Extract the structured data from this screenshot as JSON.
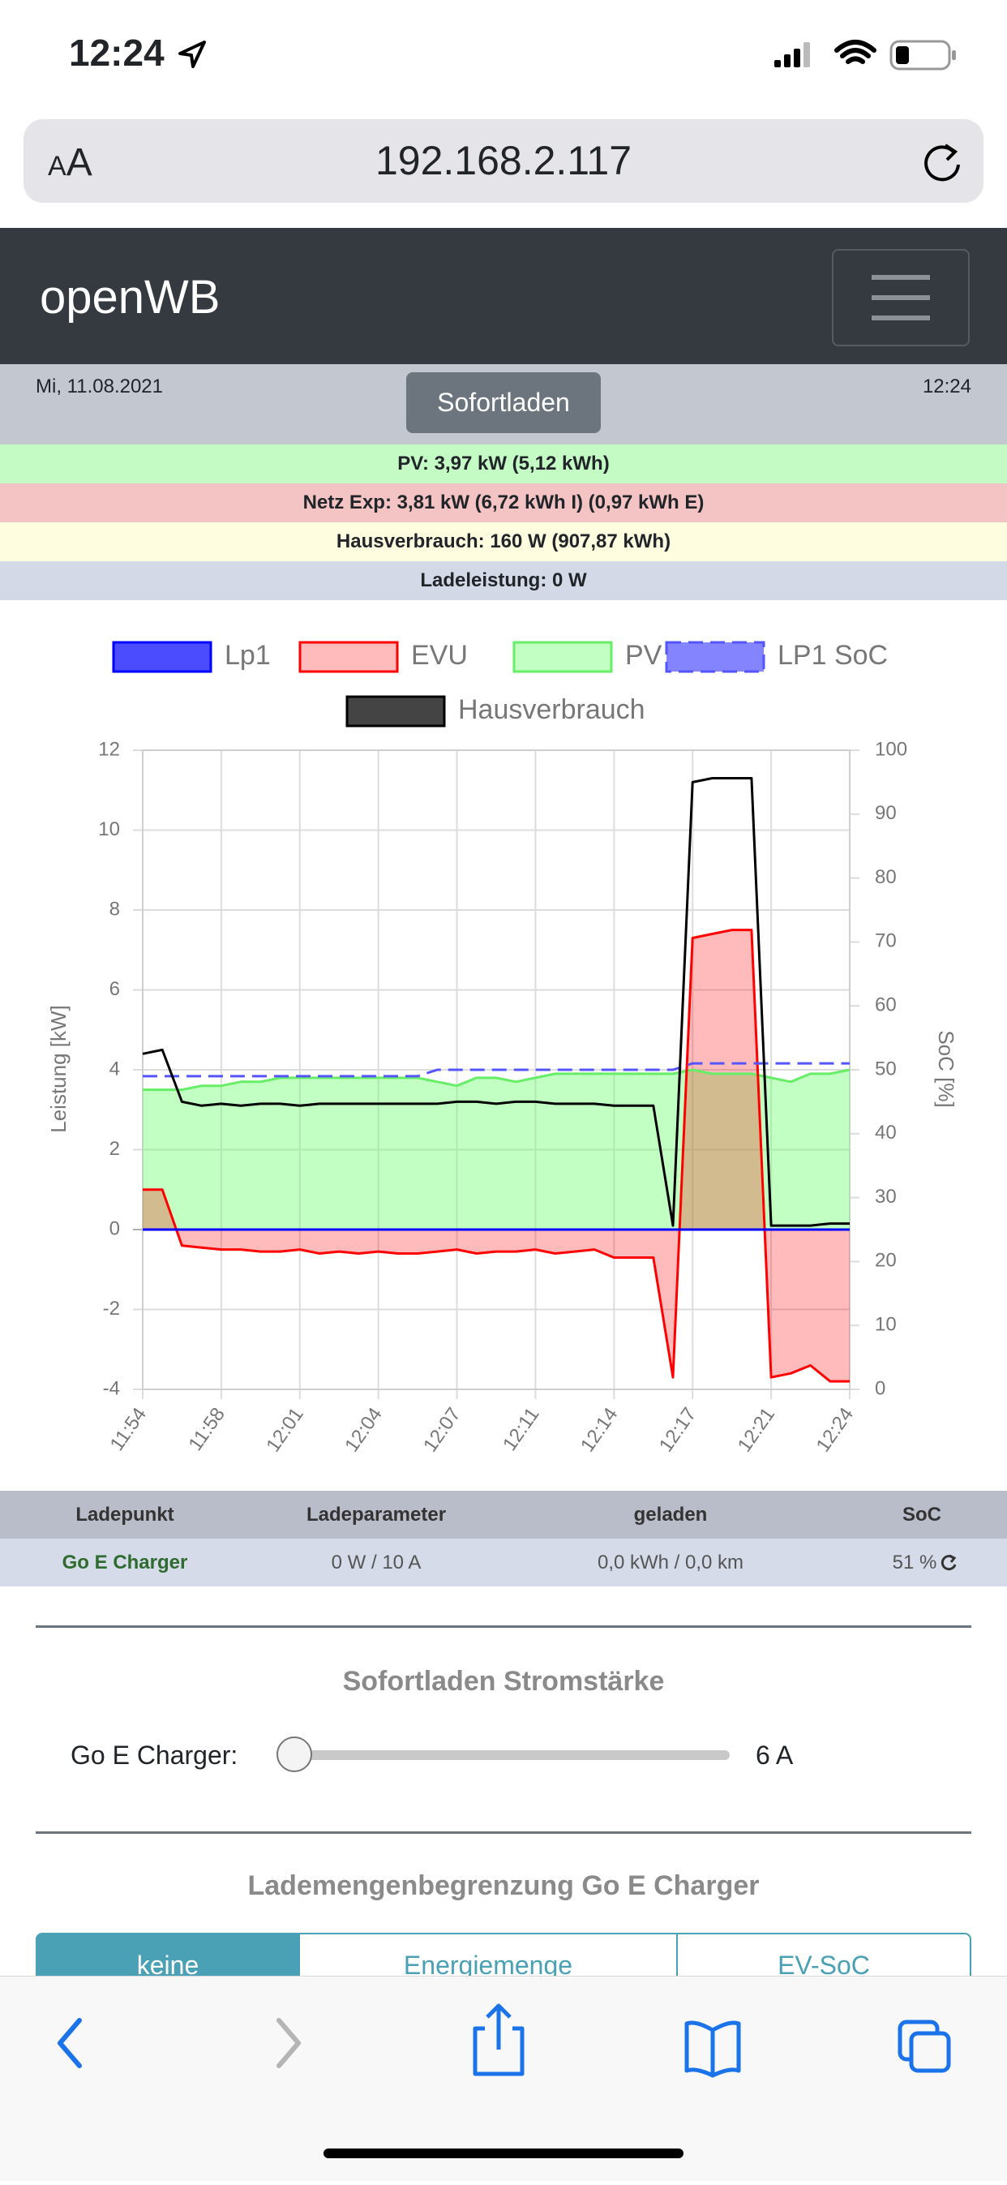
{
  "status_bar": {
    "time": "12:24"
  },
  "browser": {
    "text_size": "AA",
    "url": "192.168.2.117"
  },
  "navbar": {
    "brand": "openWB"
  },
  "info": {
    "date": "Mi, 11.08.2021",
    "time": "12:24",
    "mode_button": "Sofortladen"
  },
  "summary": [
    "PV: 3,97 kW (5,12 kWh)",
    "Netz Exp: 3,81 kW (6,72 kWh I) (0,97 kWh E)",
    "Hausverbrauch: 160 W (907,87 kWh)",
    "Ladeleistung: 0 W"
  ],
  "chart_data": {
    "type": "line",
    "ylabel": "Leistung [kW]",
    "y2label": "SoC [%]",
    "grid": true,
    "x": [
      "11:54",
      null,
      null,
      null,
      "11:58",
      null,
      null,
      null,
      "12:01",
      null,
      null,
      null,
      "12:04",
      null,
      null,
      null,
      "12:07",
      null,
      null,
      null,
      "12:11",
      null,
      null,
      null,
      "12:14",
      null,
      null,
      null,
      "12:17",
      null,
      null,
      null,
      "12:21",
      null,
      null,
      null,
      "12:24"
    ],
    "ylim": [
      -4,
      12
    ],
    "yticks": [
      -4,
      -2,
      0,
      2,
      4,
      6,
      8,
      10,
      12
    ],
    "y2lim": [
      0,
      100
    ],
    "y2ticks": [
      0,
      10,
      20,
      30,
      40,
      50,
      60,
      70,
      80,
      90,
      100
    ],
    "series": [
      {
        "name": "Lp1",
        "color": "#0000ff",
        "fill_color": "rgba(0,0,255,0.7)",
        "fill": true,
        "values": [
          0,
          0,
          0,
          0,
          0,
          0,
          0,
          0,
          0,
          0,
          0,
          0,
          0,
          0,
          0,
          0,
          0,
          0,
          0,
          0,
          0,
          0,
          0,
          0,
          0,
          0,
          0,
          0,
          0,
          0,
          0,
          0,
          0,
          0,
          0,
          0,
          0
        ]
      },
      {
        "name": "EVU",
        "color": "#ff0000",
        "fill_color": "rgba(255,10,13,0.28)",
        "fill": true,
        "values": [
          1.0,
          1.0,
          -0.4,
          -0.45,
          -0.5,
          -0.5,
          -0.55,
          -0.55,
          -0.5,
          -0.6,
          -0.55,
          -0.6,
          -0.55,
          -0.6,
          -0.6,
          -0.55,
          -0.5,
          -0.6,
          -0.55,
          -0.55,
          -0.5,
          -0.6,
          -0.55,
          -0.5,
          -0.7,
          -0.7,
          -0.7,
          -3.7,
          7.3,
          7.4,
          7.5,
          7.5,
          -3.7,
          -3.6,
          -3.4,
          -3.8,
          -3.8
        ]
      },
      {
        "name": "PV",
        "color": "#66ee66",
        "fill_color": "rgba(102,255,102,0.4)",
        "fill": true,
        "values": [
          3.5,
          3.5,
          3.5,
          3.6,
          3.6,
          3.7,
          3.7,
          3.8,
          3.8,
          3.8,
          3.8,
          3.8,
          3.8,
          3.8,
          3.8,
          3.7,
          3.6,
          3.8,
          3.8,
          3.7,
          3.8,
          3.9,
          3.9,
          3.9,
          3.9,
          3.9,
          3.9,
          3.9,
          4.0,
          3.9,
          3.9,
          3.9,
          3.8,
          3.7,
          3.9,
          3.9,
          4.0
        ]
      },
      {
        "name": "LP1 SoC",
        "color": "#5555ff",
        "fill_color": "rgba(80,80,255,0.7)",
        "fill": false,
        "dashed": true,
        "axis": "y2",
        "values": [
          49,
          49,
          49,
          49,
          49,
          49,
          49,
          49,
          49,
          49,
          49,
          49,
          49,
          49,
          49,
          50,
          50,
          50,
          50,
          50,
          50,
          50,
          50,
          50,
          50,
          50,
          50,
          50,
          51,
          51,
          51,
          51,
          51,
          51,
          51,
          51,
          51
        ]
      },
      {
        "name": "Hausverbrauch",
        "color": "#000000",
        "fill_color": "#444444",
        "fill": false,
        "values": [
          4.4,
          4.5,
          3.2,
          3.1,
          3.15,
          3.1,
          3.15,
          3.15,
          3.1,
          3.15,
          3.15,
          3.15,
          3.15,
          3.15,
          3.15,
          3.15,
          3.2,
          3.2,
          3.15,
          3.2,
          3.2,
          3.15,
          3.15,
          3.15,
          3.1,
          3.1,
          3.1,
          0.1,
          11.2,
          11.3,
          11.3,
          11.3,
          0.1,
          0.1,
          0.1,
          0.15,
          0.15
        ]
      }
    ]
  },
  "table": {
    "header": [
      "Ladepunkt",
      "Ladeparameter",
      "geladen",
      "SoC"
    ],
    "rows": [
      [
        "Go E Charger",
        "0 W / 10 A",
        "0,0 kWh / 0,0 km",
        "51 %"
      ]
    ]
  },
  "current_section": {
    "title": "Sofortladen Stromstärke",
    "label": "Go E Charger:",
    "value": "6 A"
  },
  "limit_section": {
    "title": "Lademengenbegrenzung Go E Charger",
    "options": [
      "keine",
      "Energiemenge",
      "EV-SoC"
    ]
  }
}
